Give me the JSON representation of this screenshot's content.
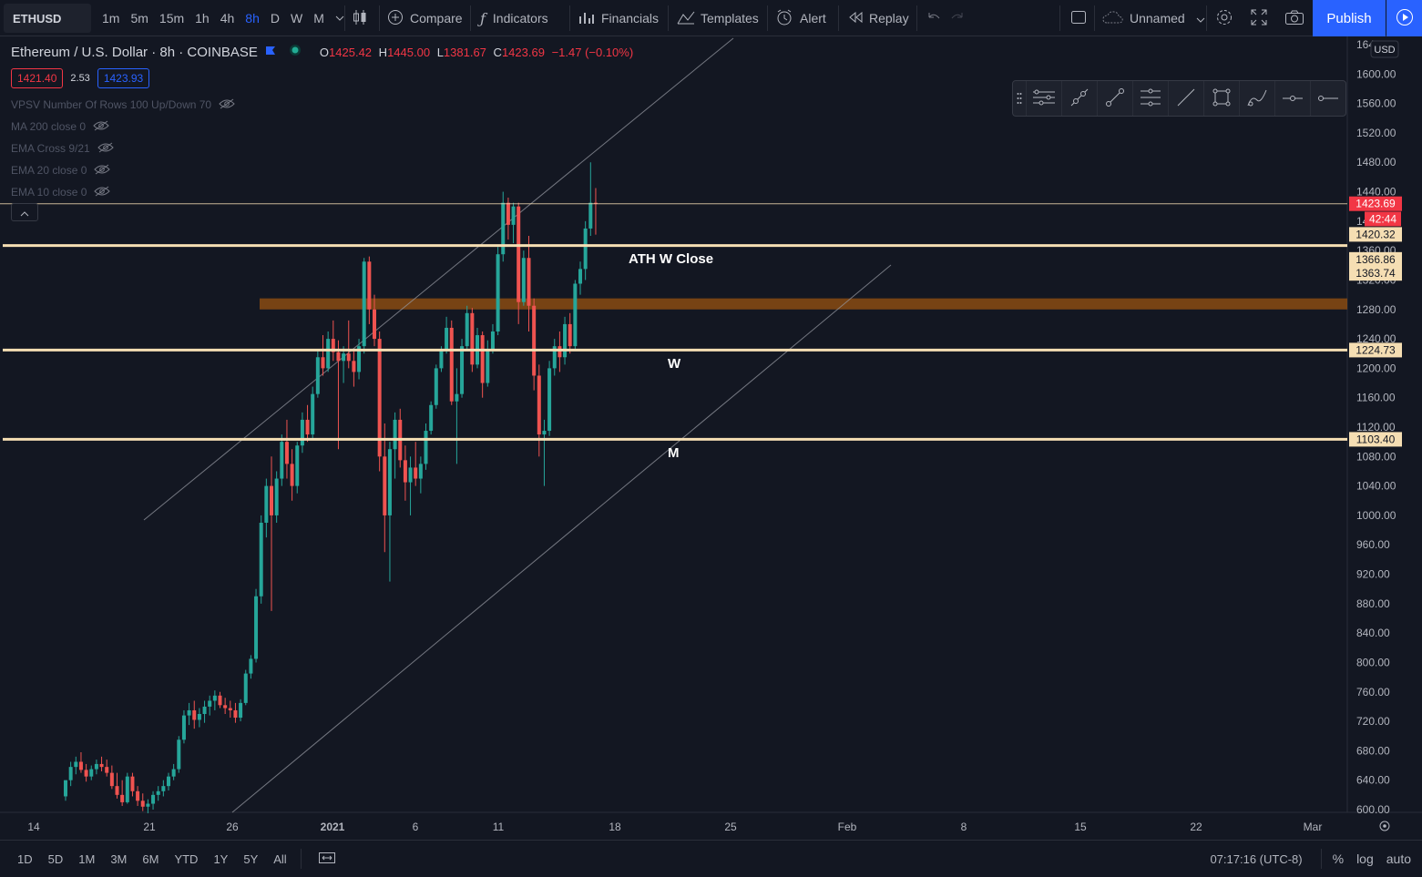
{
  "toolbar": {
    "symbol": "ETHUSD",
    "intervals": [
      "1m",
      "5m",
      "15m",
      "1h",
      "4h",
      "8h",
      "D",
      "W",
      "M"
    ],
    "active_interval": "8h",
    "compare": "Compare",
    "indicators": "Indicators",
    "financials": "Financials",
    "templates": "Templates",
    "alert": "Alert",
    "replay": "Replay",
    "layout_name": "Unnamed",
    "publish": "Publish"
  },
  "legend": {
    "title": "Ethereum / U.S. Dollar · 8h · COINBASE",
    "o_label": "O",
    "o_value": "1425.42",
    "h_label": "H",
    "h_value": "1445.00",
    "l_label": "L",
    "l_value": "1381.67",
    "c_label": "C",
    "c_value": "1423.69",
    "change": "−1.47 (−0.10%)",
    "bid": "1421.40",
    "spread": "2.53",
    "ask": "1423.93",
    "indicators": [
      "VPSV Number Of Rows 100 Up/Down 70",
      "MA 200 close 0",
      "EMA Cross 9/21",
      "EMA 20 close 0",
      "EMA 10 close 0"
    ]
  },
  "annotations": {
    "ath": "ATH W Close",
    "w": "W",
    "m": "M"
  },
  "chart_data": {
    "type": "candlestick",
    "symbol": "ETHUSD",
    "exchange": "COINBASE",
    "interval": "8h",
    "currency": "USD",
    "y_range": [
      600,
      1640
    ],
    "y_ticks": [
      600,
      640,
      680,
      720,
      760,
      800,
      840,
      880,
      920,
      960,
      1000,
      1040,
      1080,
      1120,
      1160,
      1200,
      1240,
      1280,
      1320,
      1360,
      1400,
      1440,
      1480,
      1520,
      1560,
      1600,
      1640
    ],
    "y_tick_labels": [
      "600.00",
      "640.00",
      "680.00",
      "720.00",
      "760.00",
      "800.00",
      "840.00",
      "880.00",
      "920.00",
      "960.00",
      "1000.00",
      "1040.00",
      "1080.00",
      "1120.00",
      "1160.00",
      "1200.00",
      "1240.00",
      "1280.00",
      "1320.00",
      "1360.00",
      "1400.00",
      "1440.00",
      "1480.00",
      "1520.00",
      "1560.00",
      "1600.00",
      "1640.00"
    ],
    "x_ticks": [
      "14",
      "21",
      "26",
      "2021",
      "6",
      "11",
      "18",
      "25",
      "Feb",
      "8",
      "15",
      "22",
      "Mar"
    ],
    "horizontal_levels": [
      1366.86,
      1224.73,
      1103.4
    ],
    "price_labels": [
      {
        "value": 1423.69,
        "label": "1423.69",
        "color": "#f23645"
      },
      {
        "value": 1400,
        "label": "42:44",
        "color": "#f23645"
      },
      {
        "value": 1420.32,
        "label": "1420.32",
        "color": "#f5deb3"
      },
      {
        "value": 1366.86,
        "label": "1366.86",
        "color": "#f5deb3"
      },
      {
        "value": 1363.74,
        "label": "1363.74",
        "color": "#f5deb3"
      },
      {
        "value": 1224.73,
        "label": "1224.73",
        "color": "#f5deb3"
      },
      {
        "value": 1103.4,
        "label": "1103.40",
        "color": "#f5deb3"
      }
    ],
    "resistance_zone": [
      1280,
      1295
    ],
    "last_price": 1423.69,
    "colors": {
      "up": "#26a69a",
      "down": "#ef5350",
      "level": "#f5deb3",
      "zone": "#8a4b12"
    },
    "candles": [
      {
        "o": 618,
        "h": 640,
        "l": 612,
        "c": 640
      },
      {
        "o": 640,
        "h": 665,
        "l": 632,
        "c": 658
      },
      {
        "o": 658,
        "h": 672,
        "l": 648,
        "c": 665
      },
      {
        "o": 665,
        "h": 678,
        "l": 650,
        "c": 654
      },
      {
        "o": 654,
        "h": 662,
        "l": 638,
        "c": 645
      },
      {
        "o": 645,
        "h": 660,
        "l": 640,
        "c": 655
      },
      {
        "o": 655,
        "h": 668,
        "l": 648,
        "c": 662
      },
      {
        "o": 662,
        "h": 672,
        "l": 652,
        "c": 658
      },
      {
        "o": 658,
        "h": 668,
        "l": 645,
        "c": 650
      },
      {
        "o": 650,
        "h": 660,
        "l": 628,
        "c": 632
      },
      {
        "o": 632,
        "h": 650,
        "l": 615,
        "c": 620
      },
      {
        "o": 620,
        "h": 640,
        "l": 605,
        "c": 610
      },
      {
        "o": 610,
        "h": 650,
        "l": 608,
        "c": 645
      },
      {
        "o": 645,
        "h": 650,
        "l": 618,
        "c": 625
      },
      {
        "o": 625,
        "h": 632,
        "l": 605,
        "c": 612
      },
      {
        "o": 612,
        "h": 622,
        "l": 598,
        "c": 604
      },
      {
        "o": 604,
        "h": 614,
        "l": 595,
        "c": 608
      },
      {
        "o": 608,
        "h": 625,
        "l": 600,
        "c": 620
      },
      {
        "o": 620,
        "h": 632,
        "l": 612,
        "c": 625
      },
      {
        "o": 625,
        "h": 640,
        "l": 618,
        "c": 632
      },
      {
        "o": 632,
        "h": 650,
        "l": 626,
        "c": 645
      },
      {
        "o": 645,
        "h": 662,
        "l": 640,
        "c": 655
      },
      {
        "o": 655,
        "h": 700,
        "l": 650,
        "c": 695
      },
      {
        "o": 695,
        "h": 735,
        "l": 690,
        "c": 728
      },
      {
        "o": 728,
        "h": 745,
        "l": 715,
        "c": 735
      },
      {
        "o": 735,
        "h": 748,
        "l": 710,
        "c": 722
      },
      {
        "o": 722,
        "h": 738,
        "l": 712,
        "c": 730
      },
      {
        "o": 730,
        "h": 748,
        "l": 718,
        "c": 740
      },
      {
        "o": 740,
        "h": 755,
        "l": 728,
        "c": 748
      },
      {
        "o": 748,
        "h": 762,
        "l": 735,
        "c": 755
      },
      {
        "o": 755,
        "h": 760,
        "l": 738,
        "c": 742
      },
      {
        "o": 742,
        "h": 752,
        "l": 730,
        "c": 738
      },
      {
        "o": 738,
        "h": 748,
        "l": 725,
        "c": 735
      },
      {
        "o": 735,
        "h": 745,
        "l": 718,
        "c": 725
      },
      {
        "o": 725,
        "h": 750,
        "l": 720,
        "c": 745
      },
      {
        "o": 745,
        "h": 790,
        "l": 742,
        "c": 785
      },
      {
        "o": 785,
        "h": 810,
        "l": 778,
        "c": 805
      },
      {
        "o": 805,
        "h": 900,
        "l": 800,
        "c": 890
      },
      {
        "o": 890,
        "h": 1000,
        "l": 880,
        "c": 990
      },
      {
        "o": 990,
        "h": 1050,
        "l": 970,
        "c": 1040
      },
      {
        "o": 1040,
        "h": 1080,
        "l": 870,
        "c": 1000
      },
      {
        "o": 1000,
        "h": 1060,
        "l": 990,
        "c": 1050
      },
      {
        "o": 1050,
        "h": 1110,
        "l": 1040,
        "c": 1100
      },
      {
        "o": 1100,
        "h": 1130,
        "l": 1050,
        "c": 1070
      },
      {
        "o": 1070,
        "h": 1090,
        "l": 1020,
        "c": 1040
      },
      {
        "o": 1040,
        "h": 1100,
        "l": 1030,
        "c": 1095
      },
      {
        "o": 1095,
        "h": 1140,
        "l": 1085,
        "c": 1130
      },
      {
        "o": 1130,
        "h": 1150,
        "l": 1100,
        "c": 1110
      },
      {
        "o": 1110,
        "h": 1175,
        "l": 1105,
        "c": 1165
      },
      {
        "o": 1165,
        "h": 1225,
        "l": 1160,
        "c": 1215
      },
      {
        "o": 1215,
        "h": 1245,
        "l": 1190,
        "c": 1200
      },
      {
        "o": 1200,
        "h": 1250,
        "l": 1195,
        "c": 1240
      },
      {
        "o": 1240,
        "h": 1265,
        "l": 1210,
        "c": 1222
      },
      {
        "o": 1222,
        "h": 1238,
        "l": 1090,
        "c": 1210
      },
      {
        "o": 1210,
        "h": 1230,
        "l": 1180,
        "c": 1220
      },
      {
        "o": 1220,
        "h": 1265,
        "l": 1200,
        "c": 1210
      },
      {
        "o": 1210,
        "h": 1225,
        "l": 1175,
        "c": 1195
      },
      {
        "o": 1195,
        "h": 1240,
        "l": 1185,
        "c": 1230
      },
      {
        "o": 1230,
        "h": 1350,
        "l": 1220,
        "c": 1345
      },
      {
        "o": 1345,
        "h": 1352,
        "l": 1260,
        "c": 1280
      },
      {
        "o": 1280,
        "h": 1300,
        "l": 1230,
        "c": 1240
      },
      {
        "o": 1240,
        "h": 1250,
        "l": 1060,
        "c": 1080
      },
      {
        "o": 1080,
        "h": 1125,
        "l": 950,
        "c": 1000
      },
      {
        "o": 1000,
        "h": 1100,
        "l": 910,
        "c": 1090
      },
      {
        "o": 1090,
        "h": 1140,
        "l": 1050,
        "c": 1130
      },
      {
        "o": 1130,
        "h": 1145,
        "l": 1065,
        "c": 1075
      },
      {
        "o": 1075,
        "h": 1095,
        "l": 1020,
        "c": 1045
      },
      {
        "o": 1045,
        "h": 1080,
        "l": 1000,
        "c": 1065
      },
      {
        "o": 1065,
        "h": 1100,
        "l": 1040,
        "c": 1050
      },
      {
        "o": 1050,
        "h": 1080,
        "l": 1030,
        "c": 1070
      },
      {
        "o": 1070,
        "h": 1125,
        "l": 1062,
        "c": 1115
      },
      {
        "o": 1115,
        "h": 1155,
        "l": 1110,
        "c": 1150
      },
      {
        "o": 1150,
        "h": 1205,
        "l": 1145,
        "c": 1200
      },
      {
        "o": 1200,
        "h": 1230,
        "l": 1195,
        "c": 1225
      },
      {
        "o": 1225,
        "h": 1270,
        "l": 1220,
        "c": 1255
      },
      {
        "o": 1255,
        "h": 1265,
        "l": 1150,
        "c": 1155
      },
      {
        "o": 1155,
        "h": 1200,
        "l": 1070,
        "c": 1165
      },
      {
        "o": 1165,
        "h": 1240,
        "l": 1160,
        "c": 1230
      },
      {
        "o": 1230,
        "h": 1285,
        "l": 1225,
        "c": 1275
      },
      {
        "o": 1275,
        "h": 1282,
        "l": 1195,
        "c": 1205
      },
      {
        "o": 1205,
        "h": 1255,
        "l": 1200,
        "c": 1245
      },
      {
        "o": 1245,
        "h": 1250,
        "l": 1160,
        "c": 1180
      },
      {
        "o": 1180,
        "h": 1238,
        "l": 1175,
        "c": 1225
      },
      {
        "o": 1225,
        "h": 1260,
        "l": 1220,
        "c": 1250
      },
      {
        "o": 1250,
        "h": 1365,
        "l": 1245,
        "c": 1355
      },
      {
        "o": 1355,
        "h": 1440,
        "l": 1345,
        "c": 1425
      },
      {
        "o": 1425,
        "h": 1432,
        "l": 1375,
        "c": 1395
      },
      {
        "o": 1395,
        "h": 1425,
        "l": 1370,
        "c": 1420
      },
      {
        "o": 1420,
        "h": 1425,
        "l": 1260,
        "c": 1290
      },
      {
        "o": 1290,
        "h": 1360,
        "l": 1285,
        "c": 1350
      },
      {
        "o": 1350,
        "h": 1380,
        "l": 1250,
        "c": 1285
      },
      {
        "o": 1285,
        "h": 1295,
        "l": 1170,
        "c": 1190
      },
      {
        "o": 1190,
        "h": 1205,
        "l": 1080,
        "c": 1110
      },
      {
        "o": 1110,
        "h": 1130,
        "l": 1040,
        "c": 1115
      },
      {
        "o": 1115,
        "h": 1210,
        "l": 1108,
        "c": 1200
      },
      {
        "o": 1200,
        "h": 1240,
        "l": 1190,
        "c": 1230
      },
      {
        "o": 1230,
        "h": 1250,
        "l": 1195,
        "c": 1215
      },
      {
        "o": 1215,
        "h": 1270,
        "l": 1205,
        "c": 1260
      },
      {
        "o": 1260,
        "h": 1275,
        "l": 1220,
        "c": 1230
      },
      {
        "o": 1230,
        "h": 1320,
        "l": 1225,
        "c": 1315
      },
      {
        "o": 1315,
        "h": 1345,
        "l": 1300,
        "c": 1335
      },
      {
        "o": 1335,
        "h": 1400,
        "l": 1320,
        "c": 1390
      },
      {
        "o": 1390,
        "h": 1480,
        "l": 1380,
        "c": 1425
      },
      {
        "o": 1425,
        "h": 1445,
        "l": 1381.67,
        "c": 1423.69
      }
    ]
  },
  "price_axis": {
    "currency": "USD"
  },
  "bottom": {
    "ranges": [
      "1D",
      "5D",
      "1M",
      "3M",
      "6M",
      "YTD",
      "1Y",
      "5Y",
      "All"
    ],
    "time": "07:17:16 (UTC-8)",
    "percent": "%",
    "log": "log",
    "auto": "auto"
  }
}
